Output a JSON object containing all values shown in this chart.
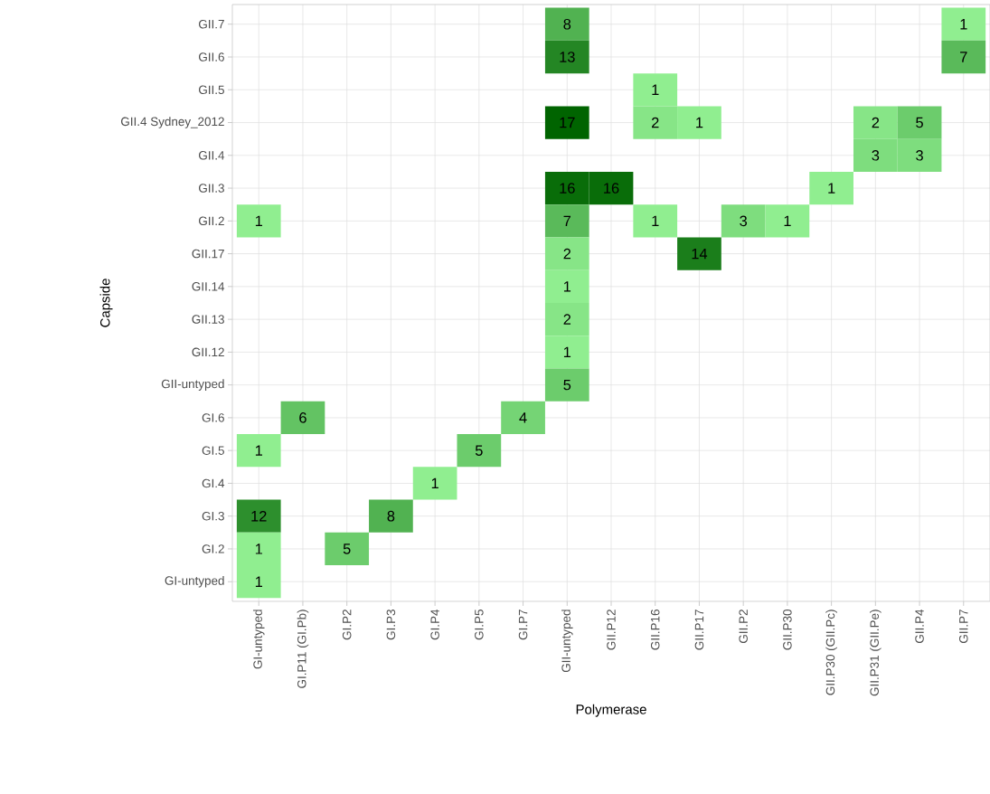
{
  "chart_data": {
    "type": "heatmap",
    "xlabel": "Polymerase",
    "ylabel": "Capside",
    "categories": [
      "GI-untyped",
      "GI.P11 (GI.Pb)",
      "GI.P2",
      "GI.P3",
      "GI.P4",
      "GI.P5",
      "GI.P7",
      "GII-untyped",
      "GII.P12",
      "GII.P16",
      "GII.P17",
      "GII.P2",
      "GII.P30",
      "GII.P30 (GII.Pc)",
      "GII.P31 (GII.Pe)",
      "GII.P4",
      "GII.P7"
    ],
    "y_categories": [
      "GII.7",
      "GII.6",
      "GII.5",
      "GII.4 Sydney_2012",
      "GII.4",
      "GII.3",
      "GII.2",
      "GII.17",
      "GII.14",
      "GII.13",
      "GII.12",
      "GII-untyped",
      "GI.6",
      "GI.5",
      "GI.4",
      "GI.3",
      "GI.2",
      "GI-untyped"
    ],
    "cells": [
      [
        null,
        null,
        null,
        null,
        null,
        null,
        null,
        8,
        null,
        null,
        null,
        null,
        null,
        null,
        null,
        null,
        1
      ],
      [
        null,
        null,
        null,
        null,
        null,
        null,
        null,
        13,
        null,
        null,
        null,
        null,
        null,
        null,
        null,
        null,
        7
      ],
      [
        null,
        null,
        null,
        null,
        null,
        null,
        null,
        null,
        null,
        1,
        null,
        null,
        null,
        null,
        null,
        null,
        null
      ],
      [
        null,
        null,
        null,
        null,
        null,
        null,
        null,
        17,
        null,
        2,
        1,
        null,
        null,
        null,
        2,
        5,
        null
      ],
      [
        null,
        null,
        null,
        null,
        null,
        null,
        null,
        null,
        null,
        null,
        null,
        null,
        null,
        null,
        3,
        3,
        null
      ],
      [
        null,
        null,
        null,
        null,
        null,
        null,
        null,
        16,
        16,
        null,
        null,
        null,
        null,
        1,
        null,
        null,
        null
      ],
      [
        1,
        null,
        null,
        null,
        null,
        null,
        null,
        7,
        null,
        1,
        null,
        3,
        1,
        null,
        null,
        null,
        null
      ],
      [
        null,
        null,
        null,
        null,
        null,
        null,
        null,
        2,
        null,
        null,
        14,
        null,
        null,
        null,
        null,
        null,
        null
      ],
      [
        null,
        null,
        null,
        null,
        null,
        null,
        null,
        1,
        null,
        null,
        null,
        null,
        null,
        null,
        null,
        null,
        null
      ],
      [
        null,
        null,
        null,
        null,
        null,
        null,
        null,
        2,
        null,
        null,
        null,
        null,
        null,
        null,
        null,
        null,
        null
      ],
      [
        null,
        null,
        null,
        null,
        null,
        null,
        null,
        1,
        null,
        null,
        null,
        null,
        null,
        null,
        null,
        null,
        null
      ],
      [
        null,
        null,
        null,
        null,
        null,
        null,
        null,
        5,
        null,
        null,
        null,
        null,
        null,
        null,
        null,
        null,
        null
      ],
      [
        null,
        6,
        null,
        null,
        null,
        null,
        4,
        null,
        null,
        null,
        null,
        null,
        null,
        null,
        null,
        null,
        null
      ],
      [
        1,
        null,
        null,
        null,
        null,
        5,
        null,
        null,
        null,
        null,
        null,
        null,
        null,
        null,
        null,
        null,
        null
      ],
      [
        null,
        null,
        null,
        null,
        1,
        null,
        null,
        null,
        null,
        null,
        null,
        null,
        null,
        null,
        null,
        null,
        null
      ],
      [
        12,
        null,
        null,
        8,
        null,
        null,
        null,
        null,
        null,
        null,
        null,
        null,
        null,
        null,
        null,
        null,
        null
      ],
      [
        1,
        null,
        5,
        null,
        null,
        null,
        null,
        null,
        null,
        null,
        null,
        null,
        null,
        null,
        null,
        null,
        null
      ],
      [
        1,
        null,
        null,
        null,
        null,
        null,
        null,
        null,
        null,
        null,
        null,
        null,
        null,
        null,
        null,
        null,
        null
      ]
    ],
    "colors": [
      "#90ee90",
      "#006400"
    ],
    "data_labels": true,
    "grid": true
  }
}
